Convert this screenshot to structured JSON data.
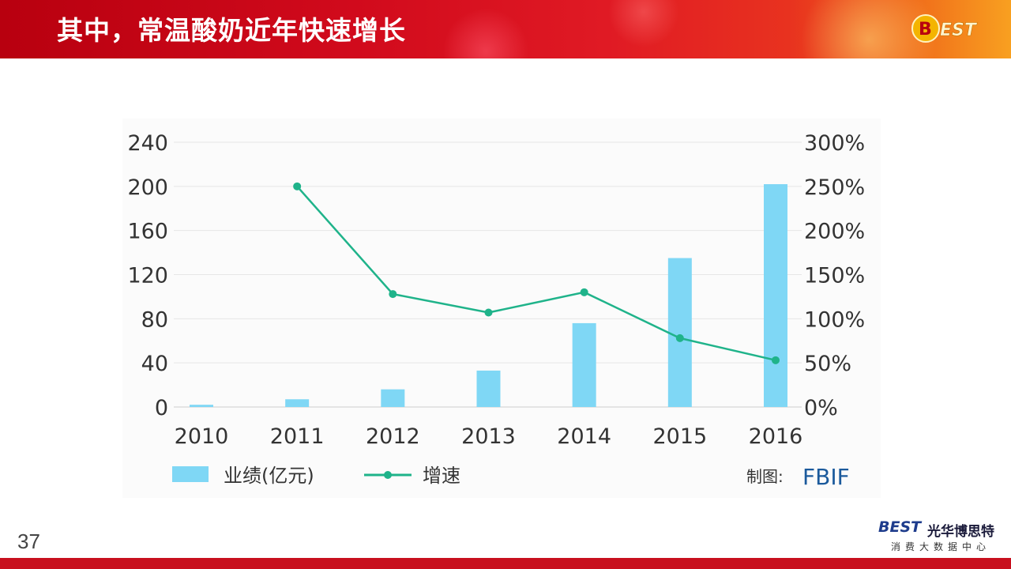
{
  "header": {
    "title": "其中，常温酸奶近年快速增长",
    "logo_text": "BEST"
  },
  "chart_data": {
    "type": "bar",
    "categories": [
      "2010",
      "2011",
      "2012",
      "2013",
      "2014",
      "2015",
      "2016"
    ],
    "series": [
      {
        "name": "业绩(亿元)",
        "type": "bar",
        "axis": "left",
        "values": [
          2,
          7,
          16,
          33,
          76,
          135,
          202
        ],
        "color": "#7fd7f5"
      },
      {
        "name": "增速",
        "type": "line",
        "axis": "right",
        "values": [
          null,
          250,
          128,
          107,
          130,
          78,
          53
        ],
        "color": "#1fb38a"
      }
    ],
    "y_left": {
      "ticks": [
        "0",
        "40",
        "80",
        "120",
        "160",
        "200",
        "240"
      ],
      "lim": [
        0,
        240
      ]
    },
    "y_right": {
      "ticks": [
        "0%",
        "50%",
        "100%",
        "150%",
        "200%",
        "250%",
        "300%"
      ],
      "lim": [
        0,
        300
      ]
    },
    "grid": true,
    "legend_placement": "bottom-left",
    "credit_label": "制图:",
    "credit_source": "FBIF"
  },
  "footer": {
    "page_number": "37",
    "brand_logo": "BEST",
    "brand_name": "光华博思特",
    "brand_sub": "消费大数据中心"
  }
}
